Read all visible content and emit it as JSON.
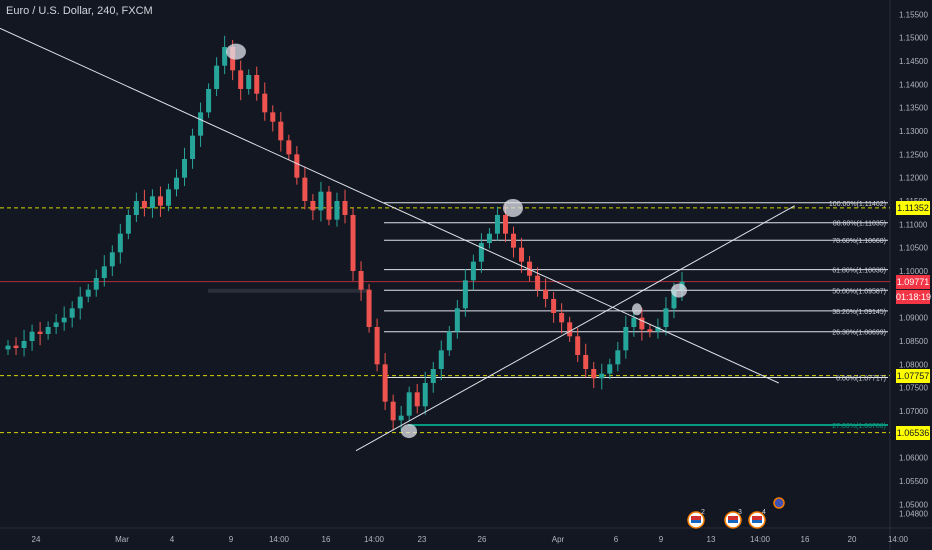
{
  "header": {
    "symbol_title": "Euro / U.S. Dollar, 240, FXCM"
  },
  "colors": {
    "background": "#131722",
    "up": "#26a69a",
    "down": "#ef5350",
    "fib": "#e0e3eb",
    "dashed": "#d4d400",
    "tag_yellow": "#ffff00",
    "price_red": "#f23645",
    "teal": "#089981"
  },
  "price_tags": {
    "level_1": "1.11352",
    "current_price": "1.09771",
    "countdown": "01:18:19",
    "level_2": "1.07757",
    "level_3": "1.06536"
  },
  "event_badges": [
    "2",
    "3",
    "4"
  ],
  "chart_data": {
    "type": "candlestick",
    "y_axis": {
      "range": [
        1.046,
        1.157
      ],
      "tick_labels": [
        "1.15500",
        "1.15000",
        "1.14500",
        "1.14000",
        "1.13500",
        "1.13000",
        "1.12500",
        "1.12000",
        "1.11500",
        "1.11000",
        "1.10500",
        "1.10000",
        "1.09500",
        "1.09000",
        "1.08500",
        "1.08000",
        "1.07500",
        "1.07000",
        "1.06500",
        "1.06000",
        "1.05500",
        "1.05000",
        "1.04800"
      ],
      "tick_values": [
        1.155,
        1.15,
        1.145,
        1.14,
        1.135,
        1.13,
        1.125,
        1.12,
        1.115,
        1.11,
        1.105,
        1.1,
        1.095,
        1.09,
        1.085,
        1.08,
        1.075,
        1.07,
        1.065,
        1.06,
        1.055,
        1.05,
        1.048
      ]
    },
    "x_axis": {
      "tick_labels": [
        "24",
        "Mar",
        "4",
        "9",
        "14:00",
        "16",
        "14:00",
        "23",
        "26",
        "Apr",
        "6",
        "9",
        "13",
        "14:00",
        "16",
        "20",
        "14:00"
      ]
    },
    "fib_levels": [
      {
        "label": "100.00%(1.11462)",
        "price": 1.11462
      },
      {
        "label": "88.60%(1.11035)",
        "price": 1.11035
      },
      {
        "label": "78.60%(1.10660)",
        "price": 1.1066
      },
      {
        "label": "61.80%(1.10030)",
        "price": 1.1003
      },
      {
        "label": "50.00%(1.09587)",
        "price": 1.09587
      },
      {
        "label": "38.20%(1.09145)",
        "price": 1.09145
      },
      {
        "label": "26.30%(1.08699)",
        "price": 1.08699
      },
      {
        "label": "0.00%(1.07717)",
        "price": 1.07717
      },
      {
        "label": "-27.00%(1.06700)",
        "price": 1.067
      }
    ],
    "horizontal_levels": [
      1.11352,
      1.09771,
      1.07757,
      1.06536
    ],
    "trendlines": [
      {
        "name": "descending",
        "from": [
          0.0,
          1.152
        ],
        "to": [
          0.875,
          1.076
        ]
      },
      {
        "name": "ascending",
        "from": [
          0.4,
          1.0615
        ],
        "to": [
          0.893,
          1.114
        ]
      }
    ],
    "series": [
      {
        "name": "candles",
        "close": [
          1.084,
          1.0835,
          1.085,
          1.087,
          1.0865,
          1.088,
          1.089,
          1.09,
          1.092,
          1.0945,
          1.096,
          1.0985,
          1.101,
          1.104,
          1.108,
          1.112,
          1.115,
          1.1135,
          1.116,
          1.114,
          1.1175,
          1.12,
          1.124,
          1.129,
          1.134,
          1.139,
          1.144,
          1.148,
          1.143,
          1.139,
          1.142,
          1.138,
          1.134,
          1.132,
          1.128,
          1.125,
          1.12,
          1.115,
          1.113,
          1.117,
          1.111,
          1.115,
          1.112,
          1.1,
          1.096,
          1.088,
          1.08,
          1.072,
          1.068,
          1.069,
          1.074,
          1.071,
          1.076,
          1.079,
          1.083,
          1.087,
          1.092,
          1.098,
          1.102,
          1.106,
          1.108,
          1.112,
          1.108,
          1.105,
          1.102,
          1.099,
          1.096,
          1.094,
          1.091,
          1.089,
          1.086,
          1.082,
          1.079,
          1.077,
          1.078,
          1.08,
          1.083,
          1.088,
          1.09,
          1.0875,
          1.087,
          1.088,
          1.092,
          1.096,
          1.0977
        ]
      }
    ]
  }
}
